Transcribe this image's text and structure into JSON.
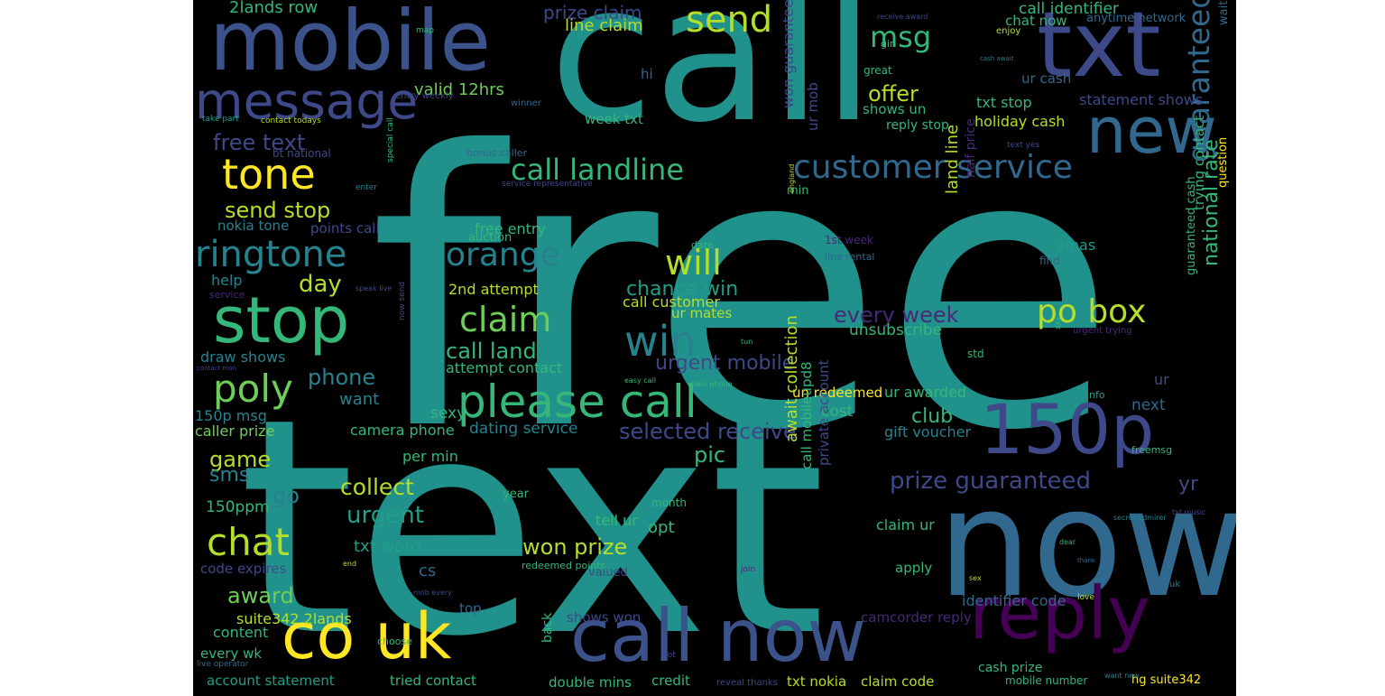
{
  "word_cloud": {
    "background": "#000000",
    "words": [
      {
        "text": "free",
        "color": "#21918c",
        "rotated": false
      },
      {
        "text": "text",
        "color": "#21918c",
        "rotated": false
      },
      {
        "text": "call",
        "color": "#21918c",
        "rotated": false
      },
      {
        "text": "now",
        "color": "#31688e",
        "rotated": false
      },
      {
        "text": "mobile",
        "color": "#3b528b",
        "rotated": false
      },
      {
        "text": "txt",
        "color": "#3e4989",
        "rotated": false
      },
      {
        "text": "new",
        "color": "#31688e",
        "rotated": false
      },
      {
        "text": "message",
        "color": "#3e4989",
        "rotated": false
      },
      {
        "text": "send",
        "color": "#b5de2b",
        "rotated": false
      },
      {
        "text": "msg",
        "color": "#35b779",
        "rotated": false
      },
      {
        "text": "tone",
        "color": "#fde725",
        "rotated": false
      },
      {
        "text": "stop",
        "color": "#35b779",
        "rotated": false
      },
      {
        "text": "ringtone",
        "color": "#26828e",
        "rotated": false
      },
      {
        "text": "customer service",
        "color": "#31688e",
        "rotated": false
      },
      {
        "text": "call landline",
        "color": "#35b779",
        "rotated": false
      },
      {
        "text": "orange",
        "color": "#26828e",
        "rotated": false
      },
      {
        "text": "will",
        "color": "#b5de2b",
        "rotated": false
      },
      {
        "text": "po box",
        "color": "#b5de2b",
        "rotated": false
      },
      {
        "text": "claim",
        "color": "#6ece58",
        "rotated": false
      },
      {
        "text": "win",
        "color": "#26828e",
        "rotated": false
      },
      {
        "text": "please call",
        "color": "#35b779",
        "rotated": false
      },
      {
        "text": "150p",
        "color": "#3e4989",
        "rotated": false
      },
      {
        "text": "poly",
        "color": "#6ece58",
        "rotated": false
      },
      {
        "text": "call now",
        "color": "#3b528b",
        "rotated": false
      },
      {
        "text": "co uk",
        "color": "#fde725",
        "rotated": false
      },
      {
        "text": "reply",
        "color": "#440154",
        "rotated": false
      },
      {
        "text": "chat",
        "color": "#b5de2b",
        "rotated": false
      },
      {
        "text": "guaranteed call",
        "color": "#31688e",
        "rotated": true
      },
      {
        "text": "national rate",
        "color": "#35b779",
        "rotated": true
      },
      {
        "text": "every week",
        "color": "#482878",
        "rotated": false
      },
      {
        "text": "prize guaranteed",
        "color": "#3e4989",
        "rotated": false
      },
      {
        "text": "free text",
        "color": "#3e4989",
        "rotated": false
      },
      {
        "text": "offer",
        "color": "#b5de2b",
        "rotated": false
      },
      {
        "text": "valid 12hrs",
        "color": "#6ece58",
        "rotated": false
      },
      {
        "text": "send stop",
        "color": "#b5de2b",
        "rotated": false
      },
      {
        "text": "day",
        "color": "#b5de2b",
        "rotated": false
      },
      {
        "text": "phone",
        "color": "#26828e",
        "rotated": false
      },
      {
        "text": "collect",
        "color": "#b5de2b",
        "rotated": false
      },
      {
        "text": "urgent",
        "color": "#1f9e89",
        "rotated": false
      },
      {
        "text": "award",
        "color": "#6ece58",
        "rotated": false
      },
      {
        "text": "won prize",
        "color": "#b5de2b",
        "rotated": false
      },
      {
        "text": "selected receive",
        "color": "#3e4989",
        "rotated": false
      },
      {
        "text": "call land",
        "color": "#35b779",
        "rotated": false
      },
      {
        "text": "chance win",
        "color": "#1f9e89",
        "rotated": false
      },
      {
        "text": "urgent mobile",
        "color": "#3e4989",
        "rotated": false
      },
      {
        "text": "game",
        "color": "#b5de2b",
        "rotated": false
      },
      {
        "text": "sms",
        "color": "#26828e",
        "rotated": false
      },
      {
        "text": "go",
        "color": "#26828e",
        "rotated": false
      },
      {
        "text": "club",
        "color": "#35b779",
        "rotated": false
      },
      {
        "text": "pic",
        "color": "#35b779",
        "rotated": false
      },
      {
        "text": "yr",
        "color": "#3e4989",
        "rotated": false
      },
      {
        "text": "2lands row",
        "color": "#35b779",
        "rotated": false
      },
      {
        "text": "prize claim",
        "color": "#3e4989",
        "rotated": false
      },
      {
        "text": "line claim",
        "color": "#b5de2b",
        "rotated": false
      },
      {
        "text": "won guaranteed",
        "color": "#3e4989",
        "rotated": true
      },
      {
        "text": "ur mob",
        "color": "#3e4989",
        "rotated": true
      },
      {
        "text": "call identifier",
        "color": "#35b779",
        "rotated": false
      },
      {
        "text": "chat now",
        "color": "#35b779",
        "rotated": false
      },
      {
        "text": "anytime network",
        "color": "#31688e",
        "rotated": false
      },
      {
        "text": "ur cash",
        "color": "#31688e",
        "rotated": false
      },
      {
        "text": "txt stop",
        "color": "#35b779",
        "rotated": false
      },
      {
        "text": "statement shows",
        "color": "#3e4989",
        "rotated": false
      },
      {
        "text": "holiday cash",
        "color": "#b5de2b",
        "rotated": false
      },
      {
        "text": "reply stop",
        "color": "#35b779",
        "rotated": false
      },
      {
        "text": "shows un",
        "color": "#35b779",
        "rotated": false
      },
      {
        "text": "week txt",
        "color": "#35b779",
        "rotated": false
      },
      {
        "text": "hi",
        "color": "#31688e",
        "rotated": false
      },
      {
        "text": "nokia tone",
        "color": "#26828e",
        "rotated": false
      },
      {
        "text": "points call",
        "color": "#3e4989",
        "rotated": false
      },
      {
        "text": "help",
        "color": "#26828e",
        "rotated": false
      },
      {
        "text": "free entry",
        "color": "#35b779",
        "rotated": false
      },
      {
        "text": "auction",
        "color": "#35b779",
        "rotated": false
      },
      {
        "text": "2nd attempt",
        "color": "#b5de2b",
        "rotated": false
      },
      {
        "text": "call customer",
        "color": "#b5de2b",
        "rotated": false
      },
      {
        "text": "ur mates",
        "color": "#b5de2b",
        "rotated": false
      },
      {
        "text": "unsubscribe",
        "color": "#35b779",
        "rotated": false
      },
      {
        "text": "xmas",
        "color": "#1f9e89",
        "rotated": false
      },
      {
        "text": "land line",
        "color": "#b5de2b",
        "rotated": true
      },
      {
        "text": "half price",
        "color": "#482878",
        "rotated": true
      },
      {
        "text": "trying contact",
        "color": "#35b779",
        "rotated": true
      },
      {
        "text": "guaranteed cash",
        "color": "#35b779",
        "rotated": true
      },
      {
        "text": "question",
        "color": "#fde725",
        "rotated": true
      },
      {
        "text": "waiting",
        "color": "#31688e",
        "rotated": true
      },
      {
        "text": "draw shows",
        "color": "#26828e",
        "rotated": false
      },
      {
        "text": "attempt contact",
        "color": "#35b779",
        "rotated": false
      },
      {
        "text": "want",
        "color": "#26828e",
        "rotated": false
      },
      {
        "text": "150p msg",
        "color": "#26828e",
        "rotated": false
      },
      {
        "text": "caller prize",
        "color": "#6ece58",
        "rotated": false
      },
      {
        "text": "camera phone",
        "color": "#35b779",
        "rotated": false
      },
      {
        "text": "sexy",
        "color": "#35b779",
        "rotated": false
      },
      {
        "text": "dating service",
        "color": "#26828e",
        "rotated": false
      },
      {
        "text": "un redeemed",
        "color": "#fde725",
        "rotated": false
      },
      {
        "text": "ur awarded",
        "color": "#35b779",
        "rotated": false
      },
      {
        "text": "cost",
        "color": "#35b779",
        "rotated": false
      },
      {
        "text": "gift voucher",
        "color": "#26828e",
        "rotated": false
      },
      {
        "text": "next",
        "color": "#31688e",
        "rotated": false
      },
      {
        "text": "ur",
        "color": "#3e4989",
        "rotated": false
      },
      {
        "text": "per min",
        "color": "#35b779",
        "rotated": false
      },
      {
        "text": "150ppm",
        "color": "#35b779",
        "rotated": false
      },
      {
        "text": "txt word",
        "color": "#1f9e89",
        "rotated": false
      },
      {
        "text": "code expires",
        "color": "#3e4989",
        "rotated": false
      },
      {
        "text": "cs",
        "color": "#31688e",
        "rotated": false
      },
      {
        "text": "tell ur",
        "color": "#35b779",
        "rotated": false
      },
      {
        "text": "opt",
        "color": "#35b779",
        "rotated": false
      },
      {
        "text": "await collection",
        "color": "#b5de2b",
        "rotated": true
      },
      {
        "text": "call mobileupd8",
        "color": "#35b779",
        "rotated": true
      },
      {
        "text": "private account",
        "color": "#3e4989",
        "rotated": true
      },
      {
        "text": "claim ur",
        "color": "#35b779",
        "rotated": false
      },
      {
        "text": "apply",
        "color": "#35b779",
        "rotated": false
      },
      {
        "text": "identifier code",
        "color": "#31688e",
        "rotated": false
      },
      {
        "text": "camcorder reply",
        "color": "#482878",
        "rotated": false
      },
      {
        "text": "suite342 2lands",
        "color": "#b5de2b",
        "rotated": false
      },
      {
        "text": "content",
        "color": "#35b779",
        "rotated": false
      },
      {
        "text": "every wk",
        "color": "#35b779",
        "rotated": false
      },
      {
        "text": "account statement",
        "color": "#1f9e89",
        "rotated": false
      },
      {
        "text": "tried contact",
        "color": "#35b779",
        "rotated": false
      },
      {
        "text": "double mins",
        "color": "#35b779",
        "rotated": false
      },
      {
        "text": "credit",
        "color": "#35b779",
        "rotated": false
      },
      {
        "text": "txt nokia",
        "color": "#b5de2b",
        "rotated": false
      },
      {
        "text": "claim code",
        "color": "#b5de2b",
        "rotated": false
      },
      {
        "text": "cash prize",
        "color": "#35b779",
        "rotated": false
      },
      {
        "text": "hg suite342",
        "color": "#fde725",
        "rotated": false
      },
      {
        "text": "shows won",
        "color": "#3e4989",
        "rotated": false
      },
      {
        "text": "top",
        "color": "#31688e",
        "rotated": false
      },
      {
        "text": "year",
        "color": "#35b779",
        "rotated": false
      },
      {
        "text": "valued",
        "color": "#3e4989",
        "rotated": false
      },
      {
        "text": "redeemed points",
        "color": "#35b779",
        "rotated": false
      },
      {
        "text": "back",
        "color": "#35b779",
        "rotated": true
      },
      {
        "text": "month",
        "color": "#35b779",
        "rotated": false
      },
      {
        "text": "min",
        "color": "#35b779",
        "rotated": false
      },
      {
        "text": "1st week",
        "color": "#482878",
        "rotated": false
      },
      {
        "text": "line rental",
        "color": "#31688e",
        "rotated": false
      },
      {
        "text": "date",
        "color": "#35b779",
        "rotated": false
      },
      {
        "text": "find",
        "color": "#31688e",
        "rotated": false
      },
      {
        "text": "std",
        "color": "#35b779",
        "rotated": false
      },
      {
        "text": "info",
        "color": "#1f9e89",
        "rotated": false
      },
      {
        "text": "freemsg",
        "color": "#35b779",
        "rotated": false
      },
      {
        "text": "urgent trying",
        "color": "#482878",
        "rotated": false
      },
      {
        "text": "bonus caller",
        "color": "#31688e",
        "rotated": false
      },
      {
        "text": "bt national",
        "color": "#3e4989",
        "rotated": false
      },
      {
        "text": "entry weekly",
        "color": "#3e4989",
        "rotated": false
      },
      {
        "text": "winner",
        "color": "#31688e",
        "rotated": false
      },
      {
        "text": "contact todays",
        "color": "#b5de2b",
        "rotated": false
      },
      {
        "text": "take part",
        "color": "#1f9e89",
        "rotated": false
      },
      {
        "text": "service representative",
        "color": "#3e4989",
        "rotated": false
      },
      {
        "text": "enter",
        "color": "#26828e",
        "rotated": false
      },
      {
        "text": "special call",
        "color": "#35b779",
        "rotated": true
      },
      {
        "text": "enjoy",
        "color": "#b5de2b",
        "rotated": false
      },
      {
        "text": "great",
        "color": "#35b779",
        "rotated": false
      },
      {
        "text": "girl",
        "color": "#35b779",
        "rotated": false
      },
      {
        "text": "text yes",
        "color": "#3e4989",
        "rotated": false
      },
      {
        "text": "map",
        "color": "#35b779",
        "rotated": false
      },
      {
        "text": "receive award",
        "color": "#3e4989",
        "rotated": false
      },
      {
        "text": "cash await",
        "color": "#26828e",
        "rotated": false
      },
      {
        "text": "service",
        "color": "#482878",
        "rotated": false
      },
      {
        "text": "speak live",
        "color": "#3e4989",
        "rotated": false
      },
      {
        "text": "live operator",
        "color": "#31688e",
        "rotated": false
      },
      {
        "text": "choose",
        "color": "#35b779",
        "rotated": false
      },
      {
        "text": "mob every",
        "color": "#3e4989",
        "rotated": false
      },
      {
        "text": "easy call",
        "color": "#35b779",
        "rotated": false
      },
      {
        "text": "video phone",
        "color": "#35b779",
        "rotated": false
      },
      {
        "text": "love",
        "color": "#b5de2b",
        "rotated": false
      },
      {
        "text": "join",
        "color": "#482878",
        "rotated": false
      },
      {
        "text": "mobile number",
        "color": "#35b779",
        "rotated": false
      },
      {
        "text": "want new",
        "color": "#26828e",
        "rotated": false
      },
      {
        "text": "uk",
        "color": "#26828e",
        "rotated": false
      },
      {
        "text": "txt music",
        "color": "#3e4989",
        "rotated": false
      },
      {
        "text": "secret admirer",
        "color": "#26828e",
        "rotated": false
      },
      {
        "text": "dear",
        "color": "#35b779",
        "rotated": false
      },
      {
        "text": "thank",
        "color": "#31688e",
        "rotated": false
      },
      {
        "text": "reveal thanks",
        "color": "#3e4989",
        "rotated": false
      },
      {
        "text": "not",
        "color": "#3e4989",
        "rotated": false
      },
      {
        "text": "end",
        "color": "#b5de2b",
        "rotated": false
      },
      {
        "text": "sex",
        "color": "#b5de2b",
        "rotated": false
      },
      {
        "text": "now send",
        "color": "#3e4989",
        "rotated": true
      },
      {
        "text": "tun",
        "color": "#35b779",
        "rotated": false
      },
      {
        "text": "xxx",
        "color": "#35b779",
        "rotated": true
      },
      {
        "text": "contact mon",
        "color": "#3e4989",
        "rotated": false
      },
      {
        "text": "england",
        "color": "#b5de2b",
        "rotated": true
      }
    ]
  }
}
